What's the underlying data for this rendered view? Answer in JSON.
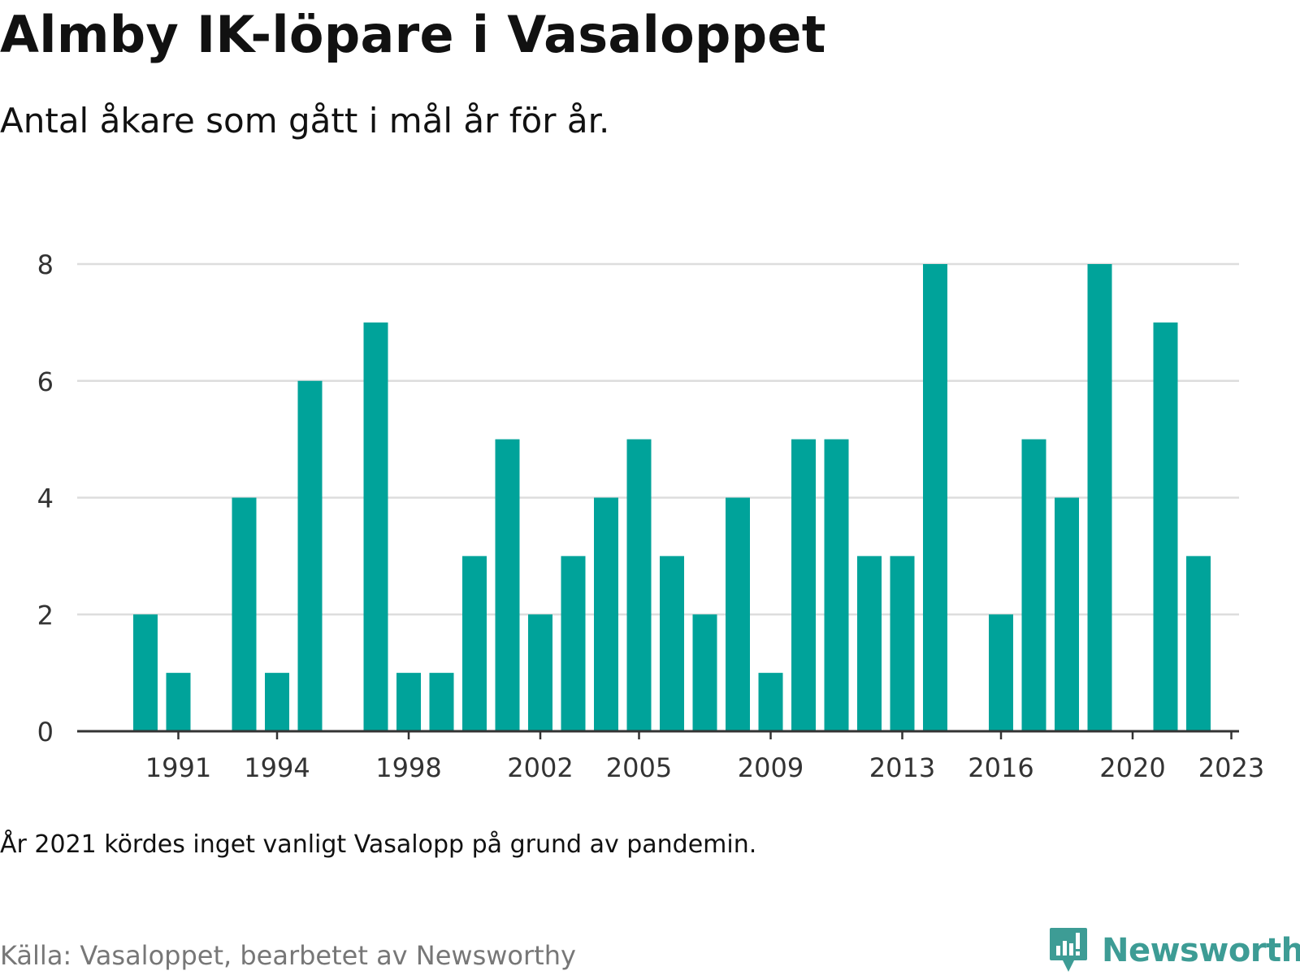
{
  "header": {
    "title": "Almby IK-löpare i Vasaloppet",
    "subtitle": "Antal åkare som gått i mål år för år."
  },
  "footer": {
    "note": "År 2021 kördes inget vanligt Vasalopp på grund av pandemin.",
    "source": "Källa: Vasaloppet, bearbetet av Newsworthy",
    "brand": "Newsworthy",
    "brand_icon": "newsworthy-logo-icon"
  },
  "colors": {
    "bar": "#00a39a",
    "brand": "#3d9c95",
    "grid": "#dddddd",
    "axis": "#333333"
  },
  "chart_data": {
    "type": "bar",
    "title": "Almby IK-löpare i Vasaloppet",
    "subtitle": "Antal åkare som gått i mål år för år.",
    "xlabel": "",
    "ylabel": "",
    "ylim": [
      0,
      8
    ],
    "yticks": [
      0,
      2,
      4,
      6,
      8
    ],
    "xtick_labels": [
      1991,
      1994,
      1998,
      2002,
      2005,
      2009,
      2013,
      2016,
      2020,
      2023
    ],
    "grid": true,
    "categories": [
      1990,
      1991,
      1992,
      1993,
      1994,
      1995,
      1996,
      1997,
      1998,
      1999,
      2000,
      2001,
      2002,
      2003,
      2004,
      2005,
      2006,
      2007,
      2008,
      2009,
      2010,
      2011,
      2012,
      2013,
      2014,
      2015,
      2016,
      2017,
      2018,
      2019,
      2020,
      2021,
      2022,
      2023
    ],
    "values": [
      2,
      1,
      0,
      4,
      1,
      6,
      0,
      7,
      1,
      1,
      3,
      5,
      2,
      3,
      4,
      5,
      3,
      2,
      4,
      1,
      5,
      5,
      3,
      3,
      8,
      0,
      2,
      5,
      4,
      8,
      0,
      7,
      3,
      0
    ]
  }
}
